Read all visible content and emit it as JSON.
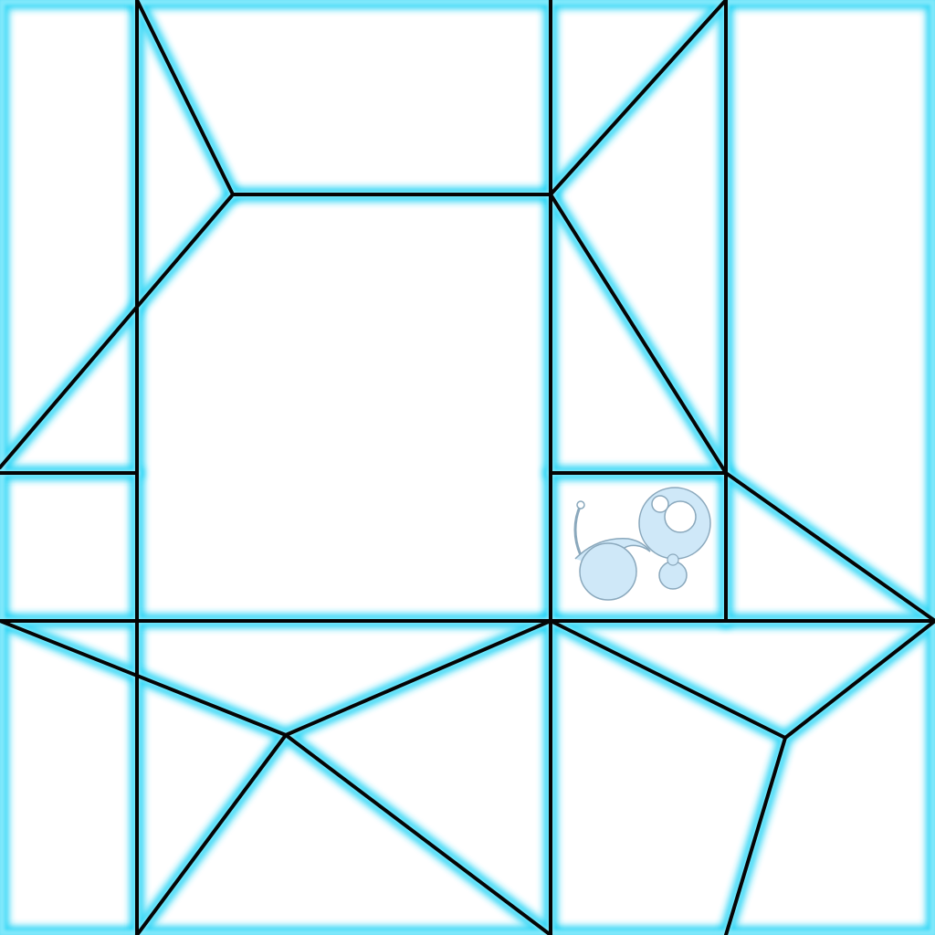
{
  "board": {
    "background_color": "#ffffff",
    "glow_color": "#27d4f5",
    "line_color": "#050505",
    "piece_count": 19
  },
  "mascot": {
    "icon": "snail-icon",
    "fill_color": "#cfe8f8",
    "outline_color": "#8aa8bc"
  }
}
